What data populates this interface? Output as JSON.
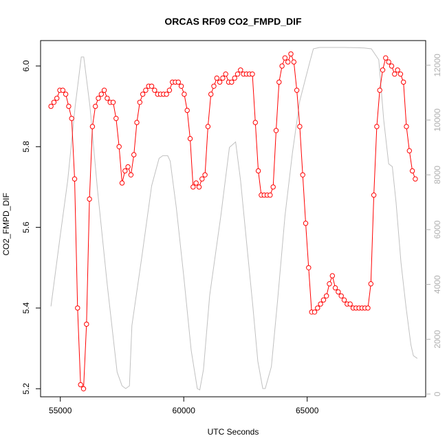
{
  "chart_data": {
    "type": "line",
    "title": "ORCAS RF09 CO2_FMPD_DIF",
    "xlabel": "UTC Seconds",
    "ylabel": "CO2_FMPD_DIF",
    "xlim": [
      54200,
      69800
    ],
    "ylim": [
      5.18,
      6.063
    ],
    "y2lim": [
      -100,
      12900
    ],
    "x_ticks": [
      55000,
      60000,
      65000
    ],
    "y_ticks": [
      5.2,
      5.4,
      5.6,
      5.8,
      6.0
    ],
    "y2_ticks": [
      0,
      2000,
      4000,
      6000,
      8000,
      10000,
      12000
    ],
    "x_tick_labels": [
      "55000",
      "60000",
      "65000"
    ],
    "y_tick_labels": [
      "5.2",
      "5.4",
      "5.6",
      "5.8",
      "6.0"
    ],
    "y2_tick_labels": [
      "0",
      "2000",
      "4000",
      "6000",
      "8000",
      "10000",
      "12000"
    ],
    "colors": {
      "series": "#ff0000",
      "altitude": "#c0c0c0",
      "axis": "#000000",
      "axis2": "#b0b0b0"
    },
    "series": [
      {
        "axis": "left",
        "style": "line+circle",
        "x": [
          54620,
          54740,
          54860,
          54980,
          55100,
          55220,
          55340,
          55460,
          55580,
          55700,
          55820,
          55940,
          56060,
          56180,
          56300,
          56420,
          56540,
          56660,
          56780,
          56900,
          57020,
          57140,
          57260,
          57380,
          57500,
          57620,
          57740,
          57860,
          57980,
          58100,
          58220,
          58340,
          58460,
          58580,
          58700,
          58820,
          58940,
          59060,
          59180,
          59300,
          59420,
          59540,
          59660,
          59780,
          59900,
          60020,
          60140,
          60260,
          60380,
          60500,
          60620,
          60740,
          60860,
          60980,
          61100,
          61220,
          61340,
          61460,
          61580,
          61700,
          61820,
          61940,
          62060,
          62180,
          62300,
          62420,
          62540,
          62660,
          62780,
          62900,
          63020,
          63140,
          63260,
          63380,
          63500,
          63620,
          63740,
          63860,
          63980,
          64100,
          64220,
          64340,
          64460,
          64580,
          64700,
          64820,
          64940,
          65060,
          65180,
          65300,
          65420,
          65540,
          65660,
          65780,
          65900,
          66020,
          66140,
          66260,
          66380,
          66500,
          66620,
          66740,
          66860,
          66980,
          67100,
          67220,
          67340,
          67460,
          67580,
          67700,
          67820,
          67940,
          68060,
          68180,
          68300,
          68420,
          68540,
          68660,
          68780,
          68900,
          69020,
          69140,
          69260,
          69380
        ],
        "y": [
          5.9,
          5.91,
          5.92,
          5.94,
          5.94,
          5.93,
          5.9,
          5.87,
          5.72,
          5.4,
          5.21,
          5.2,
          5.36,
          5.67,
          5.85,
          5.9,
          5.92,
          5.93,
          5.94,
          5.92,
          5.91,
          5.91,
          5.87,
          5.8,
          5.71,
          5.74,
          5.75,
          5.73,
          5.78,
          5.86,
          5.91,
          5.93,
          5.94,
          5.95,
          5.95,
          5.94,
          5.93,
          5.93,
          5.93,
          5.93,
          5.94,
          5.96,
          5.96,
          5.96,
          5.95,
          5.93,
          5.89,
          5.82,
          5.7,
          5.71,
          5.7,
          5.72,
          5.73,
          5.85,
          5.93,
          5.95,
          5.97,
          5.96,
          5.97,
          5.98,
          5.96,
          5.96,
          5.97,
          5.98,
          5.99,
          5.98,
          5.98,
          5.98,
          5.98,
          5.86,
          5.74,
          5.68,
          5.68,
          5.68,
          5.68,
          5.7,
          5.84,
          5.96,
          6.0,
          6.02,
          6.01,
          6.03,
          6.01,
          5.94,
          5.85,
          5.73,
          5.61,
          5.5,
          5.39,
          5.39,
          5.4,
          5.41,
          5.42,
          5.43,
          5.46,
          5.48,
          5.45,
          5.44,
          5.43,
          5.42,
          5.41,
          5.41,
          5.4,
          5.4,
          5.4,
          5.4,
          5.4,
          5.4,
          5.46,
          5.68,
          5.85,
          5.94,
          5.99,
          6.02,
          6.01,
          6.0,
          5.98,
          5.99,
          5.98,
          5.96,
          5.85,
          5.79,
          5.74,
          5.72
        ]
      },
      {
        "axis": "right",
        "style": "line",
        "x": [
          54620,
          55000,
          55300,
          55600,
          55850,
          55950,
          56200,
          56500,
          56900,
          57300,
          57500,
          57650,
          57800,
          57900,
          58300,
          58700,
          59000,
          59150,
          59350,
          59450,
          59700,
          60000,
          60300,
          60550,
          60650,
          60800,
          61050,
          61500,
          61850,
          62100,
          62300,
          62550,
          62800,
          63000,
          63200,
          63300,
          63550,
          63800,
          64100,
          64400,
          64700,
          64900,
          65100,
          65250,
          65500,
          66000,
          66500,
          67000,
          67300,
          67600,
          67900,
          68100,
          68300,
          68450,
          68600,
          68800,
          69000,
          69200,
          69300,
          69460
        ],
        "y": [
          3200,
          5800,
          7800,
          10500,
          12300,
          12300,
          10500,
          7500,
          4000,
          800,
          300,
          200,
          300,
          2500,
          5000,
          7600,
          8600,
          8700,
          8700,
          8500,
          6800,
          4300,
          1600,
          200,
          150,
          900,
          3600,
          6500,
          9000,
          9200,
          7800,
          5500,
          3200,
          1200,
          200,
          200,
          1000,
          3400,
          6500,
          8800,
          10700,
          11400,
          12100,
          12600,
          12650,
          12650,
          12650,
          12640,
          12630,
          12600,
          12200,
          10000,
          8400,
          8300,
          7000,
          4800,
          3200,
          1800,
          1400,
          1300
        ]
      }
    ]
  }
}
